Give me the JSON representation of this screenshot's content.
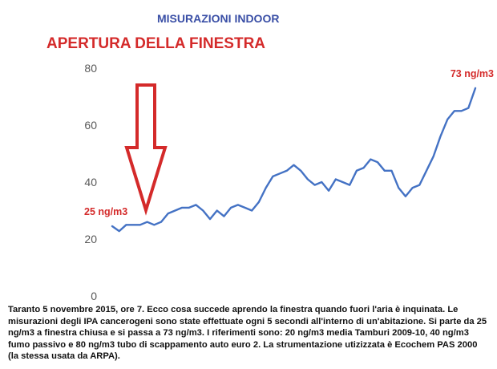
{
  "header": {
    "title": "MISURAZIONI INDOOR"
  },
  "chart_data": {
    "type": "line",
    "title": "APERTURA DELLA FINESTRA",
    "xlabel": "",
    "ylabel": "",
    "ylim": [
      0,
      80
    ],
    "yticks": [
      0,
      20,
      40,
      60,
      80
    ],
    "grid": false,
    "series": [
      {
        "values": [
          24.5,
          22.8,
          25,
          25,
          25,
          26,
          25,
          26,
          29,
          30,
          31,
          31,
          32,
          30,
          27,
          30,
          28,
          31,
          32,
          31,
          30,
          33,
          38,
          42,
          43,
          44,
          46,
          44,
          41,
          39,
          40,
          37,
          41,
          40,
          39,
          44,
          45,
          48,
          47,
          44,
          44,
          38,
          35,
          38,
          39,
          44,
          49,
          56,
          62,
          65,
          65,
          66,
          73
        ]
      }
    ],
    "annotations": [
      {
        "text": "25 ng/m3",
        "color": "#d42a2a"
      },
      {
        "text": "73 ng/m3",
        "color": "#d42a2a"
      }
    ],
    "line_color": "#4472c4",
    "arrow_color": "#d42a2a"
  },
  "caption": "Taranto 5 novembre 2015, ore 7. Ecco cosa succede aprendo la finestra quando fuori l'aria è inquinata. Le misurazioni degli IPA cancerogeni sono state effettuate ogni 5 secondi all'interno di un'abitazione. Si parte da 25 ng/m3 a finestra chiusa e si passa a 73 ng/m3. I riferimenti sono: 20 ng/m3 media Tamburi 2009-10, 40 ng/m3 fumo passivo e 80 ng/m3 tubo di scappamento auto euro 2. La strumentazione utizizzata è Ecochem PAS 2000 (la stessa usata da ARPA)."
}
